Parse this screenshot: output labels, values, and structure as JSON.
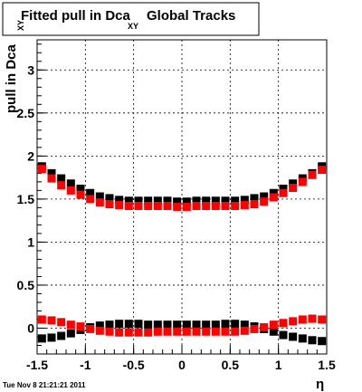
{
  "chart_data": {
    "type": "scatter",
    "title": {
      "prefix": "Fitted pull in Dca",
      "subscript": "XY",
      "suffix": "Global Tracks"
    },
    "ylabel": {
      "main": "pull in Dca",
      "subscript": "XY"
    },
    "xlabel": "η",
    "xlim": [
      -1.5,
      1.5
    ],
    "ylim": [
      -0.3,
      3.35
    ],
    "xticks": [
      "-1.5",
      "-1",
      "-0.5",
      "0",
      "0.5",
      "1",
      "1.5"
    ],
    "yticks": [
      "0",
      "0.5",
      "1",
      "1.5",
      "2",
      "2.5",
      "3"
    ],
    "grid": true,
    "timestamp": "Tue Nov  8 21:21:21 2011",
    "colors": {
      "black": "#000000",
      "red": "#ff0000"
    },
    "x": [
      -1.45,
      -1.35,
      -1.25,
      -1.15,
      -1.05,
      -0.95,
      -0.85,
      -0.75,
      -0.65,
      -0.55,
      -0.45,
      -0.35,
      -0.25,
      -0.15,
      -0.05,
      0.05,
      0.15,
      0.25,
      0.35,
      0.45,
      0.55,
      0.65,
      0.75,
      0.85,
      0.95,
      1.05,
      1.15,
      1.25,
      1.35,
      1.45
    ],
    "series": [
      {
        "color": "#000000",
        "values": [
          1.88,
          1.8,
          1.74,
          1.68,
          1.62,
          1.57,
          1.53,
          1.51,
          1.49,
          1.48,
          1.48,
          1.48,
          1.48,
          1.48,
          1.47,
          1.47,
          1.48,
          1.48,
          1.48,
          1.48,
          1.48,
          1.49,
          1.51,
          1.53,
          1.57,
          1.62,
          1.68,
          1.74,
          1.8,
          1.88
        ]
      },
      {
        "color": "#ff0000",
        "values": [
          1.85,
          1.74,
          1.66,
          1.6,
          1.55,
          1.5,
          1.46,
          1.44,
          1.43,
          1.42,
          1.42,
          1.42,
          1.42,
          1.42,
          1.41,
          1.41,
          1.42,
          1.42,
          1.42,
          1.42,
          1.42,
          1.43,
          1.44,
          1.47,
          1.52,
          1.57,
          1.63,
          1.7,
          1.78,
          1.84
        ]
      },
      {
        "color": "#000000",
        "values": [
          -0.12,
          -0.11,
          -0.09,
          -0.06,
          -0.02,
          0.01,
          0.03,
          0.04,
          0.05,
          0.05,
          0.05,
          0.04,
          0.04,
          0.04,
          0.04,
          0.04,
          0.04,
          0.04,
          0.04,
          0.05,
          0.05,
          0.04,
          0.02,
          -0.01,
          -0.04,
          -0.08,
          -0.1,
          -0.12,
          -0.14,
          -0.15
        ]
      },
      {
        "color": "#ff0000",
        "values": [
          0.1,
          0.09,
          0.07,
          0.04,
          0.02,
          -0.01,
          -0.03,
          -0.04,
          -0.05,
          -0.05,
          -0.05,
          -0.05,
          -0.04,
          -0.04,
          -0.04,
          -0.04,
          -0.04,
          -0.04,
          -0.04,
          -0.04,
          -0.04,
          -0.03,
          -0.01,
          0.01,
          0.04,
          0.06,
          0.08,
          0.1,
          0.11,
          0.1
        ]
      }
    ]
  }
}
